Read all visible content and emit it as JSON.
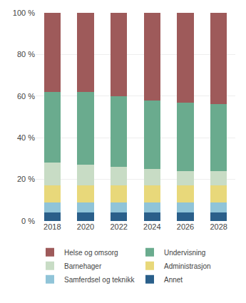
{
  "chart_data": {
    "type": "bar",
    "stacked": true,
    "categories": [
      "2018",
      "2020",
      "2022",
      "2024",
      "2026",
      "2028"
    ],
    "series": [
      {
        "name": "Annet",
        "color": "#2a5f8a",
        "values": [
          4.0,
          4.0,
          4.0,
          4.0,
          4.0,
          4.0
        ]
      },
      {
        "name": "Samferdsel og teknikk",
        "color": "#90c4d8",
        "values": [
          5.0,
          5.0,
          5.0,
          5.0,
          5.0,
          5.0
        ]
      },
      {
        "name": "Administrasjon",
        "color": "#e8d87a",
        "values": [
          8.0,
          8.0,
          8.0,
          8.0,
          8.0,
          8.0
        ]
      },
      {
        "name": "Barnehager",
        "color": "#c8dcc5",
        "values": [
          11.0,
          10.0,
          9.0,
          8.0,
          7.0,
          7.0
        ]
      },
      {
        "name": "Undervisning",
        "color": "#6aab8e",
        "values": [
          34.0,
          35.0,
          34.0,
          33.0,
          33.0,
          32.0
        ]
      },
      {
        "name": "Helse og omsorg",
        "color": "#9e5a5a",
        "values": [
          38.0,
          38.0,
          40.0,
          42.0,
          43.0,
          44.0
        ]
      }
    ],
    "ylim": [
      0,
      100
    ],
    "yticks": [
      {
        "value": 0,
        "label": "0 %"
      },
      {
        "value": 20,
        "label": "20 %"
      },
      {
        "value": 40,
        "label": "40 %"
      },
      {
        "value": 60,
        "label": "60 %"
      },
      {
        "value": 80,
        "label": "80 %"
      },
      {
        "value": 100,
        "label": "100 %"
      }
    ],
    "grid": true,
    "legend": "bottom"
  }
}
